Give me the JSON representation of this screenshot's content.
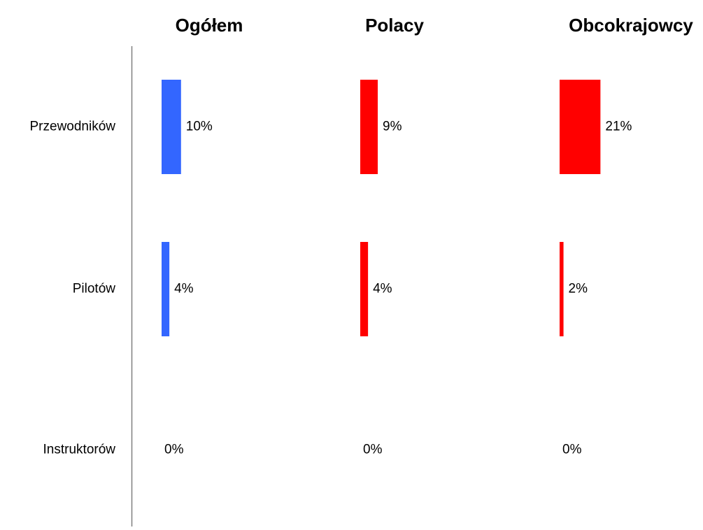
{
  "chart_data": {
    "type": "bar",
    "orientation": "horizontal",
    "categories": [
      "Przewodników",
      "Pilotów",
      "Instruktorów"
    ],
    "value_unit": "%",
    "panels": [
      {
        "title": "Ogółem",
        "color": "#3366ff",
        "values": [
          10,
          4,
          0
        ],
        "labels": [
          "10%",
          "4%",
          "0%"
        ]
      },
      {
        "title": "Polacy",
        "color": "#ff0000",
        "values": [
          9,
          4,
          0
        ],
        "labels": [
          "9%",
          "4%",
          "0%"
        ]
      },
      {
        "title": "Obcokrajowcy",
        "color": "#ff0000",
        "values": [
          21,
          2,
          0
        ],
        "labels": [
          "21%",
          "2%",
          "0%"
        ]
      }
    ],
    "axis_line_color": "#808080",
    "grid": false,
    "legend": "none"
  }
}
